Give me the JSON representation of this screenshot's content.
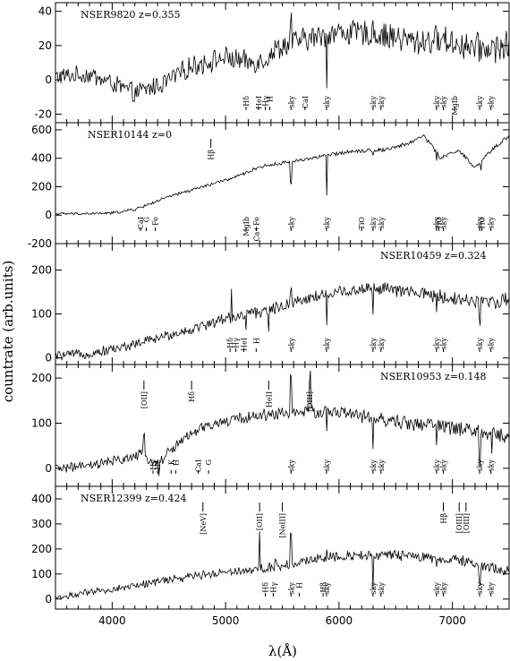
{
  "chart_data": {
    "type": "line",
    "xlabel": "λ(Å)",
    "ylabel": "countrate (arb.units)",
    "xlim": [
      3500,
      7500
    ],
    "xticks": [
      4000,
      5000,
      6000,
      7000
    ],
    "panels": [
      {
        "title": "NSER9820  z=0.355",
        "ylim": [
          -25,
          45
        ],
        "yticks": [
          -20,
          0,
          20,
          40
        ],
        "anchors": [
          [
            3500,
            2
          ],
          [
            3800,
            3
          ],
          [
            4000,
            -2
          ],
          [
            4200,
            -8
          ],
          [
            4450,
            -2
          ],
          [
            4700,
            8
          ],
          [
            5000,
            13
          ],
          [
            5200,
            10
          ],
          [
            5350,
            12
          ],
          [
            5450,
            18
          ],
          [
            5600,
            22
          ],
          [
            6000,
            28
          ],
          [
            6400,
            26
          ],
          [
            6700,
            22
          ],
          [
            6900,
            24
          ],
          [
            7100,
            20
          ],
          [
            7300,
            18
          ],
          [
            7500,
            20
          ]
        ],
        "noise": 4.5,
        "features": [
          [
            5577,
            -25
          ],
          [
            5577,
            40
          ],
          [
            5890,
            -30
          ],
          [
            6300,
            8
          ]
        ],
        "lines": [
          {
            "x": 5180,
            "t": "Hδ",
            "side": "below"
          },
          {
            "x": 5290,
            "t": "HeI",
            "side": "below"
          },
          {
            "x": 5350,
            "t": "Hγ",
            "side": "below"
          },
          {
            "x": 5390,
            "t": "H",
            "side": "below"
          },
          {
            "x": 5577,
            "t": "sky",
            "side": "below"
          },
          {
            "x": 5700,
            "t": "CaI",
            "side": "below"
          },
          {
            "x": 5890,
            "t": "sky",
            "side": "below"
          },
          {
            "x": 6300,
            "t": "sky",
            "side": "below"
          },
          {
            "x": 6370,
            "t": "sky",
            "side": "below"
          },
          {
            "x": 6860,
            "t": "sky",
            "side": "below"
          },
          {
            "x": 6920,
            "t": "sky",
            "side": "below"
          },
          {
            "x": 7020,
            "t": "MgIb",
            "side": "below"
          },
          {
            "x": 7240,
            "t": "sky",
            "side": "below"
          },
          {
            "x": 7340,
            "t": "sky",
            "side": "below"
          }
        ]
      },
      {
        "title": "NSER10144  z=0",
        "ylim": [
          -200,
          650
        ],
        "yticks": [
          -200,
          0,
          200,
          400,
          600
        ],
        "anchors": [
          [
            3500,
            10
          ],
          [
            3800,
            10
          ],
          [
            4000,
            15
          ],
          [
            4200,
            40
          ],
          [
            4500,
            130
          ],
          [
            4800,
            200
          ],
          [
            5100,
            270
          ],
          [
            5300,
            340
          ],
          [
            5600,
            380
          ],
          [
            5900,
            420
          ],
          [
            6100,
            450
          ],
          [
            6400,
            460
          ],
          [
            6600,
            500
          ],
          [
            6750,
            560
          ],
          [
            6900,
            400
          ],
          [
            7050,
            460
          ],
          [
            7200,
            330
          ],
          [
            7350,
            460
          ],
          [
            7500,
            560
          ]
        ],
        "noise": 8,
        "features": [
          [
            5577,
            -280
          ],
          [
            5577,
            120
          ],
          [
            5890,
            -320
          ],
          [
            6300,
            -40
          ],
          [
            6860,
            -60
          ],
          [
            7250,
            -80
          ]
        ],
        "lines": [
          {
            "x": 4250,
            "t": "CaI",
            "side": "below"
          },
          {
            "x": 4300,
            "t": "G",
            "side": "below"
          },
          {
            "x": 4380,
            "t": "Fe",
            "side": "below"
          },
          {
            "x": 4870,
            "t": "Hβ",
            "side": "above"
          },
          {
            "x": 5180,
            "t": "MgIb",
            "side": "below"
          },
          {
            "x": 5270,
            "t": "Ca+Fe",
            "side": "below"
          },
          {
            "x": 5577,
            "t": "sky",
            "side": "below"
          },
          {
            "x": 5890,
            "t": "sky",
            "side": "below"
          },
          {
            "x": 6200,
            "t": "TiO",
            "side": "below"
          },
          {
            "x": 6300,
            "t": "sky",
            "side": "below"
          },
          {
            "x": 6370,
            "t": "sky",
            "side": "below"
          },
          {
            "x": 6860,
            "t": "sky",
            "side": "below"
          },
          {
            "x": 6880,
            "t": "TiO",
            "side": "below"
          },
          {
            "x": 6920,
            "t": "sky",
            "side": "below"
          },
          {
            "x": 7240,
            "t": "sky",
            "side": "below"
          },
          {
            "x": 7260,
            "t": "TiO",
            "side": "below"
          },
          {
            "x": 7340,
            "t": "sky",
            "side": "below"
          }
        ]
      },
      {
        "title": "NSER10459  z=0.324",
        "ylim": [
          -15,
          260
        ],
        "yticks": [
          0,
          100,
          200
        ],
        "anchors": [
          [
            3500,
            5
          ],
          [
            3800,
            10
          ],
          [
            4100,
            25
          ],
          [
            4400,
            45
          ],
          [
            4700,
            65
          ],
          [
            5000,
            90
          ],
          [
            5200,
            100
          ],
          [
            5400,
            110
          ],
          [
            5700,
            135
          ],
          [
            6000,
            150
          ],
          [
            6300,
            160
          ],
          [
            6600,
            150
          ],
          [
            6900,
            140
          ],
          [
            7200,
            130
          ],
          [
            7500,
            130
          ]
        ],
        "noise": 9,
        "features": [
          [
            5050,
            60
          ],
          [
            5180,
            -40
          ],
          [
            5270,
            -30
          ],
          [
            5380,
            -60
          ],
          [
            5577,
            100
          ],
          [
            5577,
            -60
          ],
          [
            5890,
            -80
          ],
          [
            6300,
            -70
          ],
          [
            6860,
            -50
          ],
          [
            7240,
            -60
          ]
        ],
        "lines": [
          {
            "x": 5040,
            "t": "Hδ",
            "side": "below"
          },
          {
            "x": 5090,
            "t": "Hγ",
            "side": "below"
          },
          {
            "x": 5160,
            "t": "HeI",
            "side": "below"
          },
          {
            "x": 5270,
            "t": "H",
            "side": "below"
          },
          {
            "x": 5577,
            "t": "sky",
            "side": "below"
          },
          {
            "x": 5890,
            "t": "sky",
            "side": "below"
          },
          {
            "x": 6300,
            "t": "sky",
            "side": "below"
          },
          {
            "x": 6370,
            "t": "sky",
            "side": "below"
          },
          {
            "x": 6860,
            "t": "sky",
            "side": "below"
          },
          {
            "x": 6920,
            "t": "sky",
            "side": "below"
          },
          {
            "x": 7240,
            "t": "sky",
            "side": "below"
          },
          {
            "x": 7340,
            "t": "sky",
            "side": "below"
          }
        ]
      },
      {
        "title": "NSER10953  z=0.148",
        "ylim": [
          -40,
          230
        ],
        "yticks": [
          0,
          100,
          200
        ],
        "anchors": [
          [
            3500,
            0
          ],
          [
            3800,
            5
          ],
          [
            4100,
            20
          ],
          [
            4250,
            30
          ],
          [
            4400,
            10
          ],
          [
            4600,
            60
          ],
          [
            4800,
            90
          ],
          [
            5100,
            110
          ],
          [
            5400,
            120
          ],
          [
            5700,
            125
          ],
          [
            6000,
            125
          ],
          [
            6300,
            110
          ],
          [
            6600,
            100
          ],
          [
            6900,
            95
          ],
          [
            7200,
            80
          ],
          [
            7500,
            70
          ]
        ],
        "noise": 9,
        "features": [
          [
            4280,
            50
          ],
          [
            4410,
            -25
          ],
          [
            5577,
            90
          ],
          [
            5740,
            60
          ],
          [
            5750,
            95
          ],
          [
            5890,
            -50
          ],
          [
            6300,
            -80
          ],
          [
            6860,
            -45
          ],
          [
            7240,
            -60
          ],
          [
            7350,
            -40
          ]
        ],
        "lines": [
          {
            "x": 4280,
            "t": "[OII]",
            "side": "above"
          },
          {
            "x": 4700,
            "t": "Hδ",
            "side": "above"
          },
          {
            "x": 5380,
            "t": "HeII",
            "side": "above"
          },
          {
            "x": 5740,
            "t": "[OIII]",
            "side": "above"
          },
          {
            "x": 4360,
            "t": "Hγ",
            "side": "below"
          },
          {
            "x": 4400,
            "t": "Hδ",
            "side": "below"
          },
          {
            "x": 4520,
            "t": "K",
            "side": "below"
          },
          {
            "x": 4560,
            "t": "H",
            "side": "below"
          },
          {
            "x": 4760,
            "t": "CaI",
            "side": "below"
          },
          {
            "x": 4850,
            "t": "G",
            "side": "below"
          },
          {
            "x": 5577,
            "t": "sky",
            "side": "below"
          },
          {
            "x": 5890,
            "t": "sky",
            "side": "below"
          },
          {
            "x": 6300,
            "t": "sky",
            "side": "below"
          },
          {
            "x": 6370,
            "t": "sky",
            "side": "below"
          },
          {
            "x": 6860,
            "t": "sky",
            "side": "below"
          },
          {
            "x": 6920,
            "t": "sky",
            "side": "below"
          },
          {
            "x": 7240,
            "t": "sky",
            "side": "below"
          },
          {
            "x": 7340,
            "t": "sky",
            "side": "below"
          }
        ]
      },
      {
        "title": "NSER12399  z=0.424",
        "ylim": [
          -40,
          450
        ],
        "yticks": [
          0,
          100,
          200,
          300,
          400
        ],
        "anchors": [
          [
            3500,
            5
          ],
          [
            3800,
            25
          ],
          [
            4100,
            45
          ],
          [
            4400,
            70
          ],
          [
            4700,
            90
          ],
          [
            5000,
            110
          ],
          [
            5300,
            120
          ],
          [
            5600,
            140
          ],
          [
            5900,
            170
          ],
          [
            6200,
            175
          ],
          [
            6500,
            175
          ],
          [
            6800,
            165
          ],
          [
            7100,
            150
          ],
          [
            7300,
            130
          ],
          [
            7500,
            110
          ]
        ],
        "noise": 12,
        "features": [
          [
            5300,
            170
          ],
          [
            5440,
            40
          ],
          [
            5577,
            230
          ],
          [
            5577,
            -90
          ],
          [
            5890,
            110
          ],
          [
            5890,
            -80
          ],
          [
            6300,
            -120
          ],
          [
            6860,
            -50
          ],
          [
            7240,
            -80
          ]
        ],
        "lines": [
          {
            "x": 4800,
            "t": "[NeV]",
            "side": "above"
          },
          {
            "x": 5300,
            "t": "[OII]",
            "side": "above"
          },
          {
            "x": 5500,
            "t": "[NeIII]",
            "side": "above"
          },
          {
            "x": 6920,
            "t": "Hβ",
            "side": "above"
          },
          {
            "x": 7060,
            "t": "[OIII]",
            "side": "above"
          },
          {
            "x": 7120,
            "t": "[OIII]",
            "side": "above"
          },
          {
            "x": 5350,
            "t": "Hδ",
            "side": "below"
          },
          {
            "x": 5420,
            "t": "Hγ",
            "side": "below"
          },
          {
            "x": 5577,
            "t": "sky",
            "side": "below"
          },
          {
            "x": 5650,
            "t": "H",
            "side": "below"
          },
          {
            "x": 5860,
            "t": "Hβ",
            "side": "below"
          },
          {
            "x": 5890,
            "t": "sky",
            "side": "below"
          },
          {
            "x": 6300,
            "t": "sky",
            "side": "below"
          },
          {
            "x": 6370,
            "t": "sky",
            "side": "below"
          },
          {
            "x": 6860,
            "t": "sky",
            "side": "below"
          },
          {
            "x": 6920,
            "t": "sky",
            "side": "below"
          },
          {
            "x": 7240,
            "t": "sky",
            "side": "below"
          },
          {
            "x": 7340,
            "t": "sky",
            "side": "below"
          }
        ]
      }
    ]
  }
}
